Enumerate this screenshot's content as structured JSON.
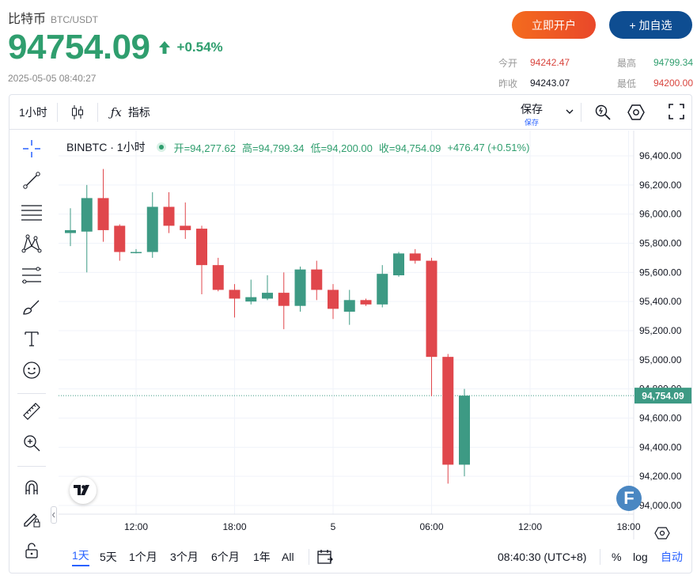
{
  "header": {
    "name": "比特币",
    "pair": "BTC/USDT",
    "price": "94754.09",
    "change_pct": "+0.54%",
    "timestamp": "2025-05-05 08:40:27",
    "open_account_label": "立即开户",
    "watchlist_label": "+ 加自选"
  },
  "stats": {
    "open_label": "今开",
    "open": "94242.47",
    "high_label": "最高",
    "high": "94799.34",
    "prev_close_label": "昨收",
    "prev_close": "94243.07",
    "low_label": "最低",
    "low": "94200.00"
  },
  "toolbar": {
    "interval": "1小时",
    "indicators_label": "指标",
    "save_label": "保存",
    "save_sub": "保存"
  },
  "legend": {
    "symbol": "BINBTC · 1小时",
    "open": "开=94,277.62",
    "high": "高=94,799.34",
    "low": "低=94,200.00",
    "close": "收=94,754.09",
    "change": "+476.47 (+0.51%)"
  },
  "bottom": {
    "ranges": [
      "1天",
      "5天",
      "1个月",
      "3个月",
      "6个月",
      "1年",
      "All"
    ],
    "active_range": "1天",
    "time": "08:40:30 (UTC+8)",
    "pct_label": "%",
    "log_label": "log",
    "auto_label": "自动"
  },
  "colors": {
    "up": "#3d9a84",
    "down": "#e0474c",
    "accent": "#2962ff",
    "price_up": "#2f9e6e"
  },
  "chart_data": {
    "type": "candlestick",
    "current_price_label": "94,754.09",
    "yticks": [
      94000,
      94200,
      94400,
      94600,
      94800,
      95000,
      95200,
      95400,
      95600,
      95800,
      96000,
      96200,
      96400
    ],
    "ytick_labels": [
      "94,000.00",
      "94,200.00",
      "94,400.00",
      "94,600.00",
      "94,800.00",
      "95,000.00",
      "95,200.00",
      "95,400.00",
      "95,600.00",
      "95,800.00",
      "96,000.00",
      "96,200.00",
      "96,400.00"
    ],
    "xtick_labels": [
      "12:00",
      "18:00",
      "5",
      "06:00",
      "12:00",
      "18:00"
    ],
    "xtick_index": [
      4,
      10,
      16,
      22,
      28,
      34
    ],
    "ylim": [
      93950,
      96500
    ],
    "current_price": 94754.09,
    "candles": [
      {
        "o": 95870,
        "h": 96040,
        "l": 95780,
        "c": 95890
      },
      {
        "o": 95880,
        "h": 96200,
        "l": 95600,
        "c": 96110
      },
      {
        "o": 96110,
        "h": 96310,
        "l": 95810,
        "c": 95890
      },
      {
        "o": 95920,
        "h": 95930,
        "l": 95680,
        "c": 95740
      },
      {
        "o": 95740,
        "h": 95760,
        "l": 95730,
        "c": 95740
      },
      {
        "o": 95740,
        "h": 96150,
        "l": 95700,
        "c": 96050
      },
      {
        "o": 96050,
        "h": 96150,
        "l": 95870,
        "c": 95920
      },
      {
        "o": 95920,
        "h": 96080,
        "l": 95830,
        "c": 95890
      },
      {
        "o": 95900,
        "h": 95920,
        "l": 95450,
        "c": 95650
      },
      {
        "o": 95650,
        "h": 95700,
        "l": 95470,
        "c": 95480
      },
      {
        "o": 95480,
        "h": 95520,
        "l": 95290,
        "c": 95420
      },
      {
        "o": 95400,
        "h": 95550,
        "l": 95380,
        "c": 95430
      },
      {
        "o": 95420,
        "h": 95580,
        "l": 95410,
        "c": 95460
      },
      {
        "o": 95460,
        "h": 95600,
        "l": 95210,
        "c": 95370
      },
      {
        "o": 95370,
        "h": 95640,
        "l": 95330,
        "c": 95620
      },
      {
        "o": 95620,
        "h": 95680,
        "l": 95410,
        "c": 95480
      },
      {
        "o": 95480,
        "h": 95520,
        "l": 95280,
        "c": 95350
      },
      {
        "o": 95330,
        "h": 95480,
        "l": 95240,
        "c": 95410
      },
      {
        "o": 95410,
        "h": 95420,
        "l": 95370,
        "c": 95380
      },
      {
        "o": 95380,
        "h": 95650,
        "l": 95360,
        "c": 95590
      },
      {
        "o": 95580,
        "h": 95740,
        "l": 95570,
        "c": 95730
      },
      {
        "o": 95730,
        "h": 95760,
        "l": 95660,
        "c": 95680
      },
      {
        "o": 95680,
        "h": 95700,
        "l": 94750,
        "c": 95020
      },
      {
        "o": 95020,
        "h": 95040,
        "l": 94150,
        "c": 94280
      },
      {
        "o": 94280,
        "h": 94800,
        "l": 94200,
        "c": 94754
      }
    ]
  }
}
